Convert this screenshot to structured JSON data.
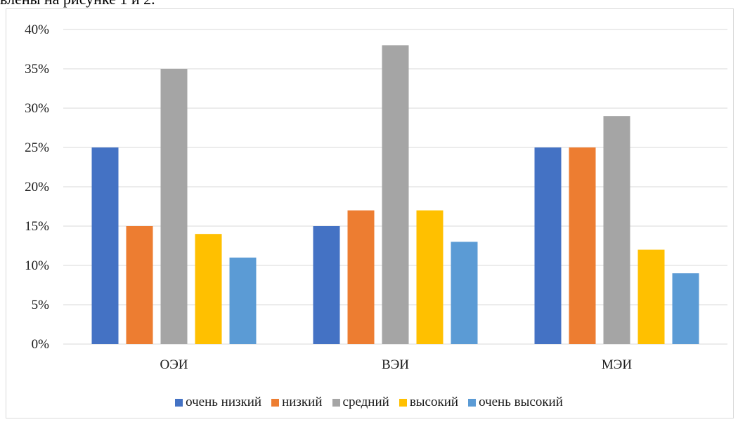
{
  "header_text": "влены на рисунке 1 и 2.",
  "chart_data": {
    "type": "bar",
    "categories": [
      "ОЭИ",
      "ВЭИ",
      "МЭИ"
    ],
    "series": [
      {
        "name": "очень низкий",
        "color": "#4472c4",
        "values": [
          25,
          15,
          25
        ]
      },
      {
        "name": "низкий",
        "color": "#ed7d31",
        "values": [
          15,
          17,
          25
        ]
      },
      {
        "name": "средний",
        "color": "#a5a5a5",
        "values": [
          35,
          38,
          29
        ]
      },
      {
        "name": "высокий",
        "color": "#ffc000",
        "values": [
          14,
          17,
          12
        ]
      },
      {
        "name": "очень высокий",
        "color": "#5b9bd5",
        "values": [
          11,
          13,
          9
        ]
      }
    ],
    "ylim": [
      0,
      40
    ],
    "yticks": [
      0,
      5,
      10,
      15,
      20,
      25,
      30,
      35,
      40
    ],
    "ytick_labels": [
      "0%",
      "5%",
      "10%",
      "15%",
      "20%",
      "25%",
      "30%",
      "35%",
      "40%"
    ],
    "grid": true,
    "legend_position": "bottom"
  }
}
